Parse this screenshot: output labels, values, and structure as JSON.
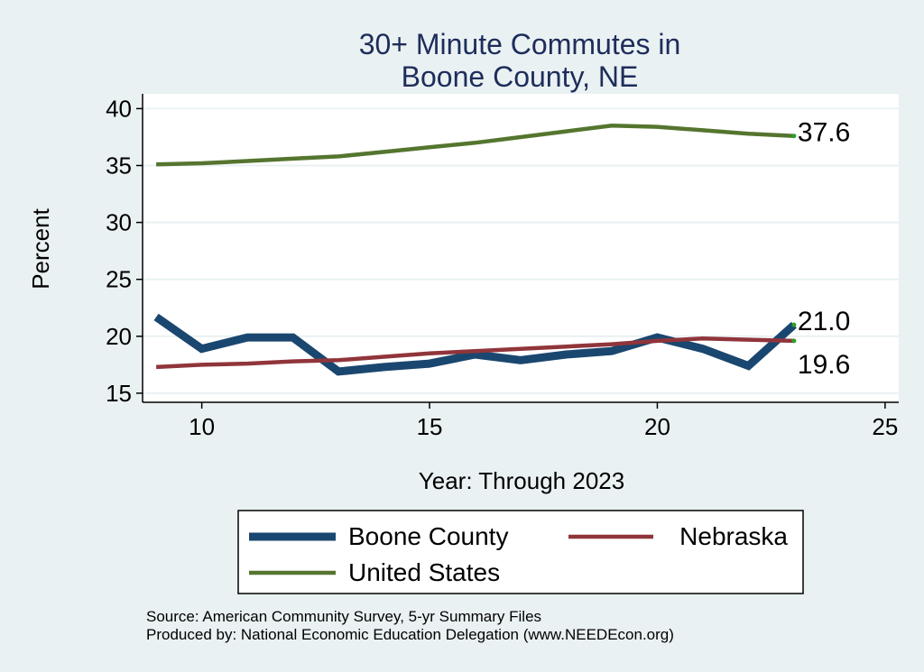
{
  "chart_data": {
    "type": "line",
    "title": "30+ Minute Commutes in",
    "subtitle": "Boone County, NE",
    "xlabel": "Year: Through 2023",
    "ylabel": "Percent",
    "xlim": [
      8.7,
      25.3
    ],
    "ylim": [
      14.2,
      41.3
    ],
    "xticks": [
      10,
      15,
      20,
      25
    ],
    "yticks": [
      15,
      20,
      25,
      30,
      35,
      40
    ],
    "grid": true,
    "legend_position": "bottom",
    "series": [
      {
        "name": "Boone County",
        "color": "#1a476f",
        "x": [
          9,
          10,
          11,
          12,
          13,
          14,
          15,
          16,
          17,
          18,
          19,
          20,
          21,
          22,
          23
        ],
        "y": [
          21.7,
          18.9,
          19.9,
          19.9,
          16.9,
          17.3,
          17.6,
          18.4,
          17.9,
          18.4,
          18.7,
          19.9,
          18.9,
          17.4,
          21.0
        ],
        "end_label": "21.0"
      },
      {
        "name": "Nebraska",
        "color": "#90353b",
        "x": [
          9,
          10,
          11,
          12,
          13,
          14,
          15,
          16,
          17,
          18,
          19,
          20,
          21,
          22,
          23
        ],
        "y": [
          17.3,
          17.5,
          17.6,
          17.8,
          17.9,
          18.2,
          18.5,
          18.7,
          18.9,
          19.1,
          19.3,
          19.6,
          19.8,
          19.7,
          19.6
        ],
        "end_label": "19.6"
      },
      {
        "name": "United States",
        "color": "#55752f",
        "x": [
          9,
          10,
          11,
          12,
          13,
          14,
          15,
          16,
          17,
          18,
          19,
          20,
          21,
          22,
          23
        ],
        "y": [
          35.1,
          35.2,
          35.4,
          35.6,
          35.8,
          36.2,
          36.6,
          37.0,
          37.5,
          38.0,
          38.5,
          38.4,
          38.1,
          37.8,
          37.6
        ],
        "end_label": "37.6"
      }
    ],
    "notes": [
      "Source: American Community Survey, 5-yr Summary Files",
      "Produced by: National Economic Education Delegation (www.NEEDEcon.org)"
    ]
  }
}
